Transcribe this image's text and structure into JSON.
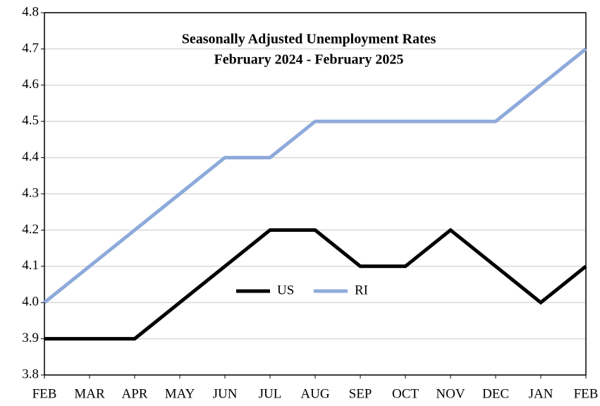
{
  "chart_data": {
    "type": "line",
    "title": "Seasonally Adjusted Unemployment Rates",
    "subtitle": "February 2024 - February 2025",
    "categories": [
      "FEB",
      "MAR",
      "APR",
      "MAY",
      "JUN",
      "JUL",
      "AUG",
      "SEP",
      "OCT",
      "NOV",
      "DEC",
      "JAN",
      "FEB"
    ],
    "series": [
      {
        "name": "US",
        "color": "#000000",
        "values": [
          3.9,
          3.9,
          3.9,
          4.0,
          4.1,
          4.2,
          4.2,
          4.1,
          4.1,
          4.2,
          4.1,
          4.0,
          4.1
        ]
      },
      {
        "name": "RI",
        "color": "#8eaadb",
        "values": [
          4.0,
          4.1,
          4.2,
          4.3,
          4.4,
          4.4,
          4.5,
          4.5,
          4.5,
          4.5,
          4.5,
          4.6,
          4.7
        ]
      }
    ],
    "ylim": [
      3.8,
      4.8
    ],
    "yticks": [
      3.8,
      3.9,
      {
        "value": 4,
        "label": "4.0"
      },
      4.1,
      4.2,
      4.3,
      4.4,
      4.5,
      4.6,
      4.7,
      4.8
    ],
    "grid": true
  }
}
